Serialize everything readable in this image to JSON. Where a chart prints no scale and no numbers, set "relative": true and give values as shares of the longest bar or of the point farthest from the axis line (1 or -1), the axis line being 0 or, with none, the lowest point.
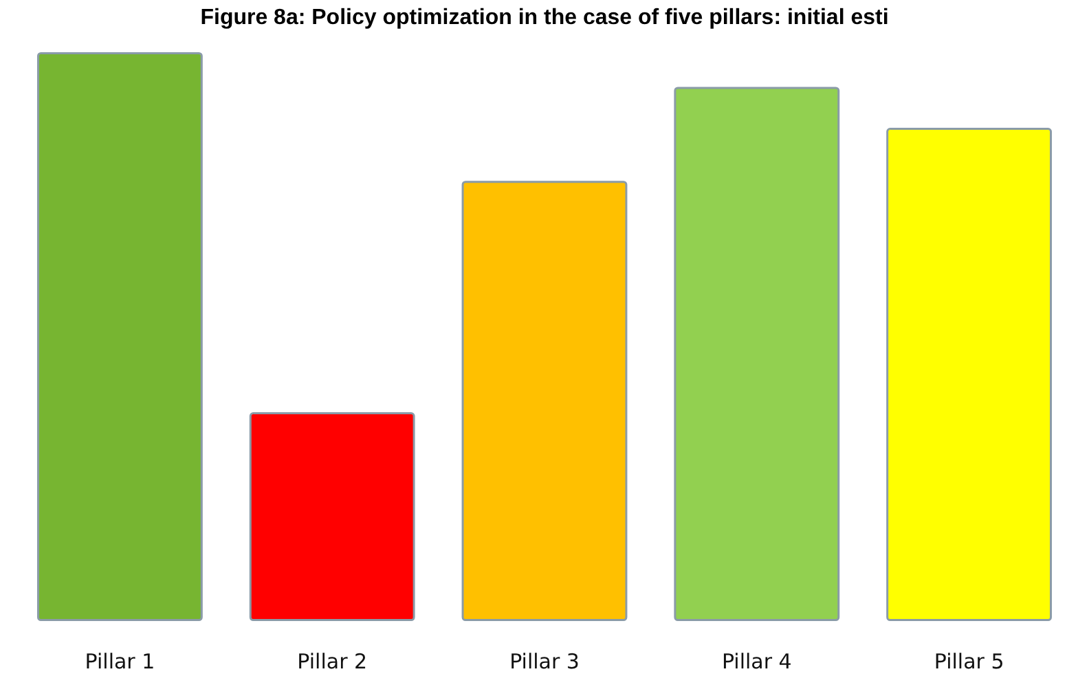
{
  "chart_data": {
    "type": "bar",
    "title": "Figure 8a: Policy optimization in the case of five pillars: initial esti",
    "categories": [
      "Pillar 1",
      "Pillar 2",
      "Pillar 3",
      "Pillar 4",
      "Pillar 5"
    ],
    "values": [
      1,
      0.367,
      0.774,
      0.939,
      0.867
    ],
    "colors": [
      "#77b531",
      "#ff0000",
      "#ffc000",
      "#92d050",
      "#ffff00"
    ],
    "relative": true
  }
}
